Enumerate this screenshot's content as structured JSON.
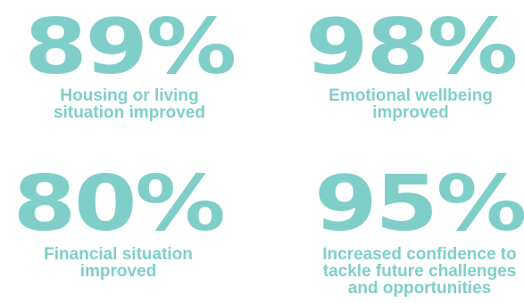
{
  "accent_color": "#7fcfc8",
  "stats": [
    {
      "value": "89%",
      "caption": "Housing or living\nsituation improved"
    },
    {
      "value": "98%",
      "caption": "Emotional wellbeing\nimproved"
    },
    {
      "value": "80%",
      "caption": "Financial situation\nimproved"
    },
    {
      "value": "95%",
      "caption": "Increased confidence to\ntackle future challenges\nand opportunities"
    }
  ]
}
